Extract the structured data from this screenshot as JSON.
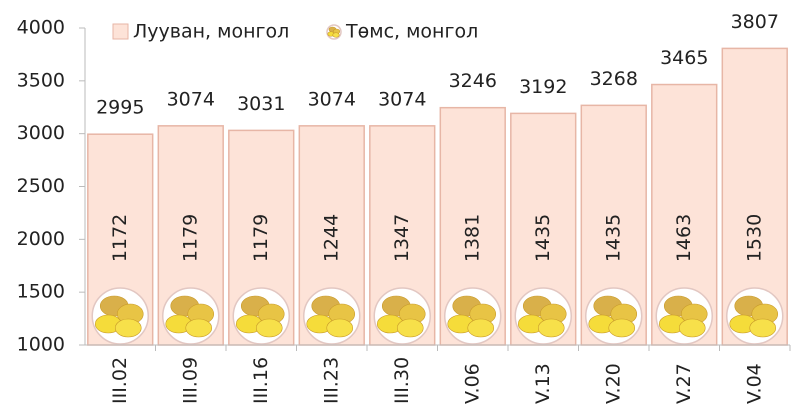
{
  "chart_data": {
    "type": "bar",
    "categories": [
      "III.02",
      "III.09",
      "III.16",
      "III.23",
      "III.30",
      "V.06",
      "V.13",
      "V.20",
      "V.27",
      "V.04"
    ],
    "series": [
      {
        "name": "Лууван, монгол",
        "color": "#fde3d8",
        "values": [
          2995,
          3074,
          3031,
          3074,
          3074,
          3246,
          3192,
          3268,
          3465,
          3807
        ]
      },
      {
        "name": "Төмс, монгол",
        "color": "#f2cf1d",
        "values": [
          1172,
          1179,
          1179,
          1244,
          1347,
          1381,
          1435,
          1435,
          1463,
          1530
        ]
      }
    ],
    "ylim": [
      1000,
      4000
    ],
    "yticks": [
      1000,
      1500,
      2000,
      2500,
      3000,
      3500,
      4000
    ]
  }
}
